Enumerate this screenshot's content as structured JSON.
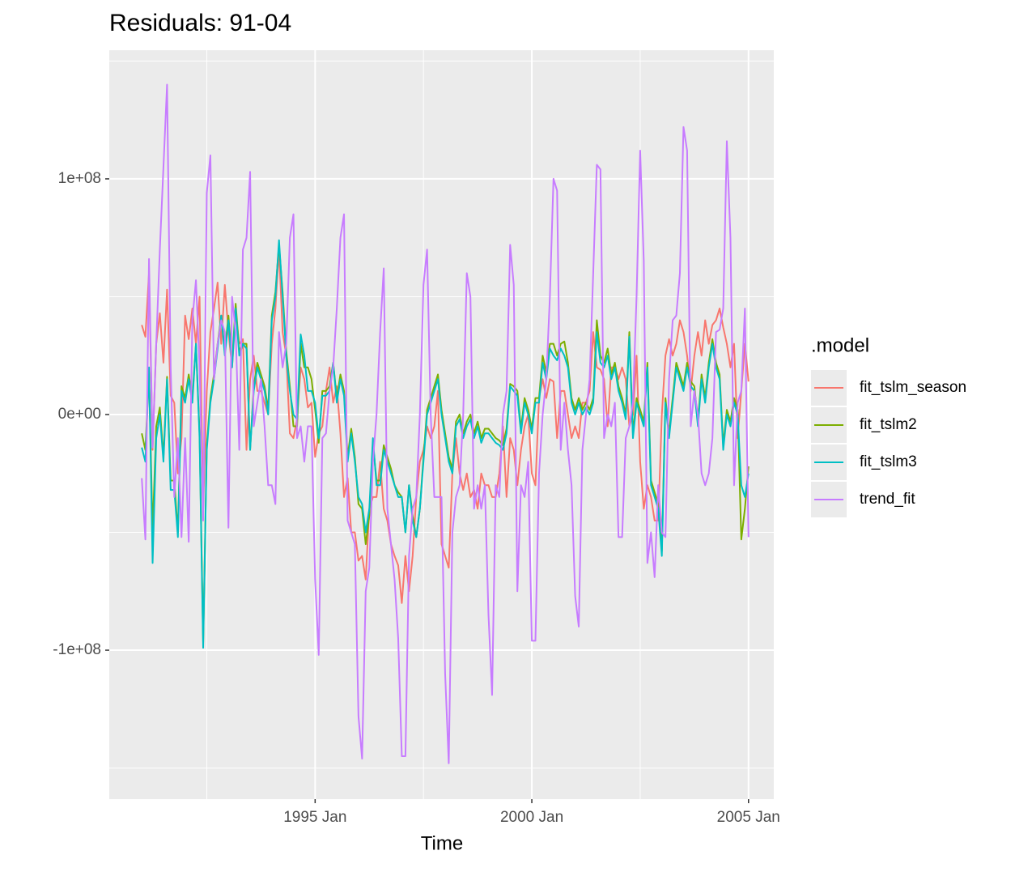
{
  "chart_data": {
    "type": "line",
    "title": "Residuals: 91-04",
    "xlabel": "Time",
    "legend_title": ".model",
    "legend_position": "right",
    "grid": true,
    "xlim": [
      "1990-04",
      "2005-08"
    ],
    "xticks": [
      {
        "value": "1995-01",
        "label": "1995 Jan"
      },
      {
        "value": "2000-01",
        "label": "2000 Jan"
      },
      {
        "value": "2005-01",
        "label": "2005 Jan"
      }
    ],
    "ylim": [
      -163200000.0,
      154600000.0
    ],
    "yticks": [
      {
        "value": -100000000.0,
        "label": "-1e+08"
      },
      {
        "value": 0,
        "label": "0e+00"
      },
      {
        "value": 100000000.0,
        "label": "1e+08"
      }
    ],
    "x": [
      "1991-01",
      "1991-02",
      "1991-03",
      "1991-04",
      "1991-05",
      "1991-06",
      "1991-07",
      "1991-08",
      "1991-09",
      "1991-10",
      "1991-11",
      "1991-12",
      "1992-01",
      "1992-02",
      "1992-03",
      "1992-04",
      "1992-05",
      "1992-06",
      "1992-07",
      "1992-08",
      "1992-09",
      "1992-10",
      "1992-11",
      "1992-12",
      "1993-01",
      "1993-02",
      "1993-03",
      "1993-04",
      "1993-05",
      "1993-06",
      "1993-07",
      "1993-08",
      "1993-09",
      "1993-10",
      "1993-11",
      "1993-12",
      "1994-01",
      "1994-02",
      "1994-03",
      "1994-04",
      "1994-05",
      "1994-06",
      "1994-07",
      "1994-08",
      "1994-09",
      "1994-10",
      "1994-11",
      "1994-12",
      "1995-01",
      "1995-02",
      "1995-03",
      "1995-04",
      "1995-05",
      "1995-06",
      "1995-07",
      "1995-08",
      "1995-09",
      "1995-10",
      "1995-11",
      "1995-12",
      "1996-01",
      "1996-02",
      "1996-03",
      "1996-04",
      "1996-05",
      "1996-06",
      "1996-07",
      "1996-08",
      "1996-09",
      "1996-10",
      "1996-11",
      "1996-12",
      "1997-01",
      "1997-02",
      "1997-03",
      "1997-04",
      "1997-05",
      "1997-06",
      "1997-07",
      "1997-08",
      "1997-09",
      "1997-10",
      "1997-11",
      "1997-12",
      "1998-01",
      "1998-02",
      "1998-03",
      "1998-04",
      "1998-05",
      "1998-06",
      "1998-07",
      "1998-08",
      "1998-09",
      "1998-10",
      "1998-11",
      "1998-12",
      "1999-01",
      "1999-02",
      "1999-03",
      "1999-04",
      "1999-05",
      "1999-06",
      "1999-07",
      "1999-08",
      "1999-09",
      "1999-10",
      "1999-11",
      "1999-12",
      "2000-01",
      "2000-02",
      "2000-03",
      "2000-04",
      "2000-05",
      "2000-06",
      "2000-07",
      "2000-08",
      "2000-09",
      "2000-10",
      "2000-11",
      "2000-12",
      "2001-01",
      "2001-02",
      "2001-03",
      "2001-04",
      "2001-05",
      "2001-06",
      "2001-07",
      "2001-08",
      "2001-09",
      "2001-10",
      "2001-11",
      "2001-12",
      "2002-01",
      "2002-02",
      "2002-03",
      "2002-04",
      "2002-05",
      "2002-06",
      "2002-07",
      "2002-08",
      "2002-09",
      "2002-10",
      "2002-11",
      "2002-12",
      "2003-01",
      "2003-02",
      "2003-03",
      "2003-04",
      "2003-05",
      "2003-06",
      "2003-07",
      "2003-08",
      "2003-09",
      "2003-10",
      "2003-11",
      "2003-12",
      "2004-01",
      "2004-02",
      "2004-03",
      "2004-04",
      "2004-05",
      "2004-06",
      "2004-07",
      "2004-08",
      "2004-09",
      "2004-10",
      "2004-11",
      "2004-12",
      "2005-01"
    ],
    "series": [
      {
        "name": "fit_tslm_season",
        "color": "#F8766D",
        "values": [
          38000000.0,
          33000000.0,
          60000000.0,
          -15000000.0,
          30000000.0,
          43000000.0,
          22000000.0,
          53000000.0,
          8000000.0,
          5000000.0,
          -25000000.0,
          -10000000.0,
          42000000.0,
          32000000.0,
          45000000.0,
          30000000.0,
          50000000.0,
          -40000000.0,
          10000000.0,
          35000000.0,
          45000000.0,
          56000000.0,
          30000000.0,
          55000000.0,
          35000000.0,
          20000000.0,
          43000000.0,
          30000000.0,
          32000000.0,
          -15000000.0,
          15000000.0,
          25000000.0,
          10000000.0,
          10000000.0,
          5000000.0,
          0,
          30000000.0,
          45000000.0,
          70000000.0,
          35000000.0,
          25000000.0,
          -8000000.0,
          -10000000.0,
          -2000000.0,
          20000000.0,
          15000000.0,
          3000000.0,
          5000000.0,
          -18000000.0,
          -8000000.0,
          -5000000.0,
          10000000.0,
          20000000.0,
          5000000.0,
          12000000.0,
          -8000000.0,
          -35000000.0,
          -27000000.0,
          -50000000.0,
          -50000000.0,
          -62000000.0,
          -60000000.0,
          -70000000.0,
          -40000000.0,
          -35000000.0,
          -35000000.0,
          -20000000.0,
          -40000000.0,
          -45000000.0,
          -55000000.0,
          -60000000.0,
          -64000000.0,
          -80000000.0,
          -60000000.0,
          -75000000.0,
          -60000000.0,
          -35000000.0,
          -20000000.0,
          -15000000.0,
          -5000000.0,
          -10000000.0,
          -5000000.0,
          10000000.0,
          -55000000.0,
          -60000000.0,
          -65000000.0,
          -25000000.0,
          -10000000.0,
          -25000000.0,
          -32000000.0,
          -25000000.0,
          -35000000.0,
          -32000000.0,
          -40000000.0,
          -25000000.0,
          -30000000.0,
          -30000000.0,
          -35000000.0,
          -35000000.0,
          -25000000.0,
          -5000000.0,
          -35000000.0,
          -10000000.0,
          -15000000.0,
          -30000000.0,
          -15000000.0,
          -5000000.0,
          0,
          -25000000.0,
          -30000000.0,
          7000000.0,
          15000000.0,
          7000000.0,
          15000000.0,
          14000000.0,
          -10000000.0,
          10000000.0,
          10000000.0,
          0,
          -10000000.0,
          -5000000.0,
          -10000000.0,
          5000000.0,
          5000000.0,
          10000000.0,
          35000000.0,
          20000000.0,
          19000000.0,
          15000000.0,
          -5000000.0,
          20000000.0,
          20000000.0,
          15000000.0,
          20000000.0,
          15000000.0,
          -5000000.0,
          0,
          25000000.0,
          -20000000.0,
          -40000000.0,
          -30000000.0,
          -35000000.0,
          -45000000.0,
          -45000000.0,
          0,
          25000000.0,
          32000000.0,
          25000000.0,
          30000000.0,
          40000000.0,
          35000000.0,
          25000000.0,
          10000000.0,
          25000000.0,
          35000000.0,
          25000000.0,
          40000000.0,
          30000000.0,
          38000000.0,
          40000000.0,
          45000000.0,
          37000000.0,
          30000000.0,
          20000000.0,
          30000000.0,
          -10000000.0,
          10000000.0,
          30000000.0,
          14000000.0
        ]
      },
      {
        "name": "fit_tslm2",
        "color": "#7CAE00",
        "values": [
          -8000000.0,
          -15000000.0,
          18000000.0,
          -50000000.0,
          -5000000.0,
          3000000.0,
          -18000000.0,
          16000000.0,
          -28000000.0,
          -28000000.0,
          -50000000.0,
          12000000.0,
          7000000.0,
          17000000.0,
          7000000.0,
          30000000.0,
          -8000000.0,
          -97000000.0,
          -13000000.0,
          7000000.0,
          17000000.0,
          30000000.0,
          42000000.0,
          27000000.0,
          42000000.0,
          22000000.0,
          47000000.0,
          27000000.0,
          30000000.0,
          30000000.0,
          -15000000.0,
          12000000.0,
          22000000.0,
          17000000.0,
          12000000.0,
          2000000.0,
          42000000.0,
          52000000.0,
          72000000.0,
          52000000.0,
          27000000.0,
          12000000.0,
          -5000000.0,
          -5000000.0,
          30000000.0,
          20000000.0,
          20000000.0,
          15000000.0,
          2000000.0,
          -12000000.0,
          10000000.0,
          10000000.0,
          12000000.0,
          22000000.0,
          7000000.0,
          17000000.0,
          10000000.0,
          -18000000.0,
          -6000000.0,
          -18000000.0,
          -38000000.0,
          -40000000.0,
          -55000000.0,
          -43000000.0,
          -12000000.0,
          -28000000.0,
          -28000000.0,
          -13000000.0,
          -18000000.0,
          -23000000.0,
          -30000000.0,
          -33000000.0,
          -35000000.0,
          -50000000.0,
          -30000000.0,
          -43000000.0,
          -52000000.0,
          -40000000.0,
          -18000000.0,
          2000000.0,
          7000000.0,
          12000000.0,
          17000000.0,
          2000000.0,
          -8000000.0,
          -18000000.0,
          -23000000.0,
          -3000000.0,
          0,
          -8000000.0,
          -3000000.0,
          0,
          -8000000.0,
          -3000000.0,
          -10000000.0,
          -6000000.0,
          -6000000.0,
          -8000000.0,
          -10000000.0,
          -11000000.0,
          -13000000.0,
          -6000000.0,
          13000000.0,
          12000000.0,
          10000000.0,
          -6000000.0,
          7000000.0,
          2000000.0,
          -6000000.0,
          7000000.0,
          7000000.0,
          25000000.0,
          18000000.0,
          30000000.0,
          30000000.0,
          25000000.0,
          30000000.0,
          31000000.0,
          22000000.0,
          7000000.0,
          2000000.0,
          7000000.0,
          2000000.0,
          5000000.0,
          2000000.0,
          7000000.0,
          40000000.0,
          25000000.0,
          22000000.0,
          28000000.0,
          17000000.0,
          22000000.0,
          12000000.0,
          7000000.0,
          0,
          35000000.0,
          -8000000.0,
          7000000.0,
          2000000.0,
          -3000000.0,
          22000000.0,
          -28000000.0,
          -33000000.0,
          -38000000.0,
          -58000000.0,
          7000000.0,
          -8000000.0,
          7000000.0,
          22000000.0,
          17000000.0,
          12000000.0,
          22000000.0,
          14000000.0,
          12000000.0,
          -3000000.0,
          17000000.0,
          7000000.0,
          22000000.0,
          32000000.0,
          22000000.0,
          17000000.0,
          -13000000.0,
          2000000.0,
          -3000000.0,
          7000000.0,
          2000000.0,
          -53000000.0,
          -40000000.0,
          -22000000.0
        ]
      },
      {
        "name": "fit_tslm3",
        "color": "#00BFC4",
        "values": [
          -14000000.0,
          -20000000.0,
          20000000.0,
          -63000000.0,
          -10000000.0,
          0,
          -20000000.0,
          15000000.0,
          -32000000.0,
          -32000000.0,
          -52000000.0,
          10000000.0,
          5000000.0,
          15000000.0,
          5000000.0,
          30000000.0,
          -10000000.0,
          -99000000.0,
          -15000000.0,
          5000000.0,
          15000000.0,
          28000000.0,
          42000000.0,
          25000000.0,
          40000000.0,
          20000000.0,
          45000000.0,
          25000000.0,
          30000000.0,
          28000000.0,
          -15000000.0,
          10000000.0,
          20000000.0,
          15000000.0,
          10000000.0,
          0,
          40000000.0,
          50000000.0,
          74000000.0,
          50000000.0,
          25000000.0,
          10000000.0,
          0,
          -2000000.0,
          34000000.0,
          25000000.0,
          10000000.0,
          10000000.0,
          5000000.0,
          -10000000.0,
          8000000.0,
          8000000.0,
          10000000.0,
          22000000.0,
          5000000.0,
          15000000.0,
          8000000.0,
          -20000000.0,
          -8000000.0,
          -20000000.0,
          -35000000.0,
          -38000000.0,
          -50000000.0,
          -40000000.0,
          -10000000.0,
          -30000000.0,
          -30000000.0,
          -15000000.0,
          -20000000.0,
          -25000000.0,
          -30000000.0,
          -35000000.0,
          -35000000.0,
          -50000000.0,
          -30000000.0,
          -45000000.0,
          -52000000.0,
          -40000000.0,
          -20000000.0,
          0,
          5000000.0,
          10000000.0,
          15000000.0,
          0,
          -10000000.0,
          -20000000.0,
          -25000000.0,
          -5000000.0,
          -2000000.0,
          -10000000.0,
          -5000000.0,
          -2000000.0,
          -10000000.0,
          -5000000.0,
          -12000000.0,
          -8000000.0,
          -8000000.0,
          -10000000.0,
          -12000000.0,
          -13000000.0,
          -15000000.0,
          -8000000.0,
          12000000.0,
          10000000.0,
          8000000.0,
          -8000000.0,
          5000000.0,
          0,
          -8000000.0,
          5000000.0,
          5000000.0,
          22000000.0,
          15000000.0,
          28000000.0,
          25000000.0,
          23000000.0,
          28000000.0,
          25000000.0,
          20000000.0,
          5000000.0,
          0,
          5000000.0,
          0,
          3000000.0,
          0,
          5000000.0,
          35000000.0,
          22000000.0,
          20000000.0,
          25000000.0,
          15000000.0,
          20000000.0,
          10000000.0,
          5000000.0,
          -2000000.0,
          33000000.0,
          -10000000.0,
          5000000.0,
          0,
          -5000000.0,
          20000000.0,
          -30000000.0,
          -35000000.0,
          -40000000.0,
          -60000000.0,
          5000000.0,
          -10000000.0,
          5000000.0,
          20000000.0,
          15000000.0,
          10000000.0,
          20000000.0,
          12000000.0,
          10000000.0,
          -5000000.0,
          15000000.0,
          5000000.0,
          20000000.0,
          30000000.0,
          20000000.0,
          15000000.0,
          -15000000.0,
          0,
          -5000000.0,
          5000000.0,
          0,
          -30000000.0,
          -35000000.0,
          -25000000.0
        ]
      },
      {
        "name": "trend_fit",
        "color": "#C77CFF",
        "values": [
          -27000000.0,
          -53000000.0,
          66000000.0,
          -14000000.0,
          30000000.0,
          70000000.0,
          105000000.0,
          140000000.0,
          20000000.0,
          -35000000.0,
          -10000000.0,
          -52000000.0,
          -10000000.0,
          -54000000.0,
          40000000.0,
          57000000.0,
          20000000.0,
          -45000000.0,
          94000000.0,
          110000000.0,
          15000000.0,
          30000000.0,
          40000000.0,
          35000000.0,
          -48000000.0,
          50000000.0,
          35000000.0,
          -15000000.0,
          70000000.0,
          75000000.0,
          103000000.0,
          -5000000.0,
          5000000.0,
          15000000.0,
          -5000000.0,
          -30000000.0,
          -30000000.0,
          -38000000.0,
          35000000.0,
          20000000.0,
          30000000.0,
          75000000.0,
          85000000.0,
          -10000000.0,
          -5000000.0,
          -20000000.0,
          -5000000.0,
          -5000000.0,
          -70000000.0,
          -102000000.0,
          -10000000.0,
          -8000000.0,
          10000000.0,
          20000000.0,
          45000000.0,
          75000000.0,
          85000000.0,
          -45000000.0,
          -50000000.0,
          -55000000.0,
          -128000000.0,
          -146000000.0,
          -75000000.0,
          -65000000.0,
          -20000000.0,
          0,
          35000000.0,
          62000000.0,
          -40000000.0,
          -55000000.0,
          -70000000.0,
          -95000000.0,
          -145000000.0,
          -145000000.0,
          -60000000.0,
          -40000000.0,
          -35000000.0,
          0,
          55000000.0,
          70000000.0,
          0,
          -35000000.0,
          -35000000.0,
          -35000000.0,
          -110000000.0,
          -148000000.0,
          -50000000.0,
          -35000000.0,
          -30000000.0,
          0,
          60000000.0,
          50000000.0,
          -40000000.0,
          -30000000.0,
          -40000000.0,
          -30000000.0,
          -85000000.0,
          -119000000.0,
          -30000000.0,
          -35000000.0,
          0,
          10000000.0,
          72000000.0,
          55000000.0,
          -75000000.0,
          -30000000.0,
          -35000000.0,
          -20000000.0,
          -96000000.0,
          -96000000.0,
          -25000000.0,
          0,
          15000000.0,
          50000000.0,
          100000000.0,
          95000000.0,
          -15000000.0,
          5000000.0,
          -15000000.0,
          -30000000.0,
          -77000000.0,
          -90000000.0,
          -15000000.0,
          0,
          15000000.0,
          60000000.0,
          106000000.0,
          104000000.0,
          -10000000.0,
          0,
          -5000000.0,
          5000000.0,
          -52000000.0,
          -52000000.0,
          -10000000.0,
          -5000000.0,
          5000000.0,
          50000000.0,
          112000000.0,
          65000000.0,
          -63000000.0,
          -50000000.0,
          -69000000.0,
          -30000000.0,
          -50000000.0,
          -52000000.0,
          15000000.0,
          40000000.0,
          42000000.0,
          60000000.0,
          122000000.0,
          112000000.0,
          -5000000.0,
          10000000.0,
          0,
          -25000000.0,
          -30000000.0,
          -25000000.0,
          -10000000.0,
          35000000.0,
          36000000.0,
          45000000.0,
          116000000.0,
          75000000.0,
          -30000000.0,
          5000000.0,
          10000000.0,
          45000000.0,
          -52000000.0
        ]
      }
    ]
  }
}
